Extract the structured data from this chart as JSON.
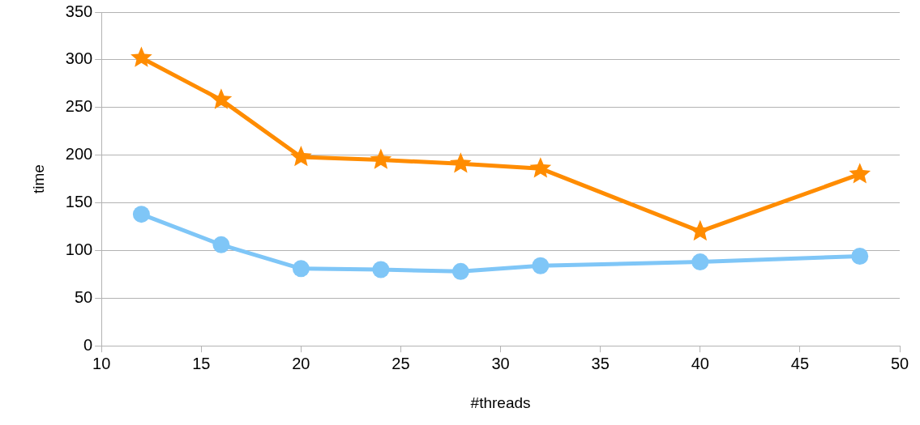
{
  "chart_data": {
    "type": "line",
    "xlabel": "#threads",
    "ylabel": "time",
    "x": [
      12,
      16,
      20,
      24,
      28,
      32,
      40,
      48
    ],
    "series": [
      {
        "color": "#ff8c00",
        "marker": "star",
        "values": [
          302,
          258,
          198,
          195,
          191,
          186,
          120,
          180
        ]
      },
      {
        "color": "#7fc6f7",
        "marker": "circle",
        "values": [
          138,
          106,
          81,
          80,
          78,
          84,
          88,
          94
        ]
      }
    ],
    "xlim": [
      10,
      50
    ],
    "xticks": [
      10,
      15,
      20,
      25,
      30,
      35,
      40,
      45,
      50
    ],
    "ylim": [
      0,
      350
    ],
    "yticks": [
      0,
      50,
      100,
      150,
      200,
      250,
      300,
      350
    ],
    "grid": "y",
    "legend": false
  }
}
